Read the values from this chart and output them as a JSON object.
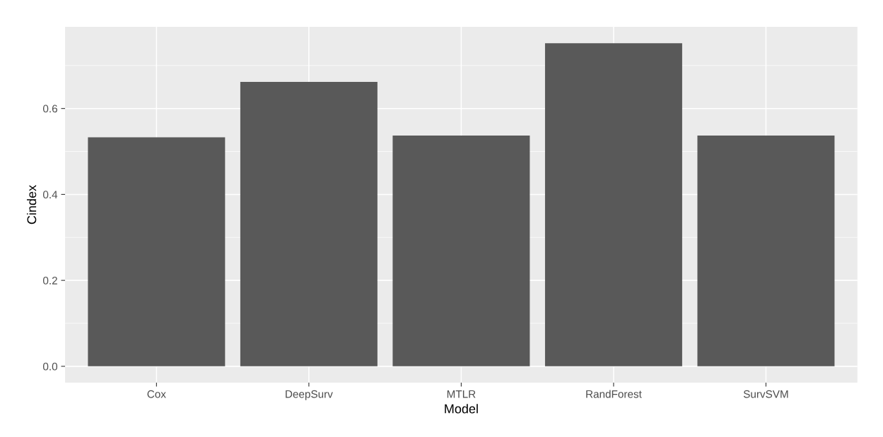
{
  "chart_data": {
    "type": "bar",
    "xlabel": "Model",
    "ylabel": "Cindex",
    "categories": [
      "Cox",
      "DeepSurv",
      "MTLR",
      "RandForest",
      "SurvSVM"
    ],
    "values": [
      0.533,
      0.662,
      0.537,
      0.752,
      0.537
    ],
    "color": "#595959",
    "ylim": [
      -0.038,
      0.79
    ],
    "yticks": [
      {
        "value": 0,
        "label": "0.0"
      },
      {
        "value": 0.2,
        "label": "0.2"
      },
      {
        "value": 0.4,
        "label": "0.4"
      },
      {
        "value": 0.6,
        "label": "0.6"
      }
    ],
    "grid": true
  }
}
